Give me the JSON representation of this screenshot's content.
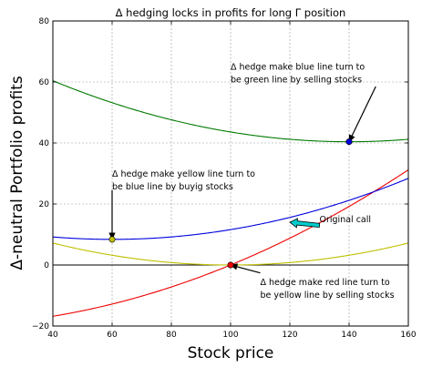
{
  "chart_data": {
    "type": "line",
    "title": "Δ hedging locks in profits for long Γ position",
    "xlabel": "Stock price",
    "ylabel": "Δ-neutral Portfolio profits",
    "xlim": [
      40,
      160
    ],
    "ylim": [
      -20,
      80
    ],
    "xticks": [
      40,
      60,
      80,
      100,
      120,
      140,
      160
    ],
    "yticks": [
      -20,
      0,
      20,
      40,
      60,
      80
    ],
    "grid": true,
    "colors": {
      "red": "#ee0000",
      "yellow": "#bfbf00",
      "blue": "#0000dd",
      "green": "#007a00",
      "cyan": "#00cccc"
    },
    "series": [
      {
        "color_key": "red",
        "equation": "0.002*(x-100)^2 + 0.4*(x-100)",
        "vertex": [
          100,
          0
        ]
      },
      {
        "color_key": "yellow",
        "equation": "0.002*(x-100)^2",
        "vertex": [
          100,
          0
        ]
      },
      {
        "color_key": "blue",
        "equation": "0.002*(x-60)^2 + 8.4",
        "vertex": [
          60,
          8.4
        ]
      },
      {
        "color_key": "green",
        "equation": "0.002*(x-140)^2 + 40.4",
        "vertex": [
          140,
          40.4
        ]
      }
    ],
    "markers": [
      {
        "x": 100,
        "y": 0,
        "color_key": "red"
      },
      {
        "x": 60,
        "y": 8.4,
        "color_key": "yellow"
      },
      {
        "x": 140,
        "y": 40.4,
        "color_key": "blue"
      }
    ],
    "annotations": [
      {
        "lines": [
          "Δ hedge make blue line turn to",
          "be green line by selling stocks"
        ],
        "xy": [
          140,
          40.4
        ],
        "text_xy": [
          100,
          64
        ]
      },
      {
        "lines": [
          "Δ hedge make yellow line turn to",
          "be blue line by buyig stocks"
        ],
        "xy": [
          60,
          8.4
        ],
        "text_xy": [
          60,
          29
        ]
      },
      {
        "lines": [
          "Δ hedge make red line turn to",
          "be yellow line by selling stocks"
        ],
        "xy": [
          100,
          0
        ],
        "text_xy": [
          110,
          -6.5
        ]
      },
      {
        "lines": [
          "Original call"
        ],
        "xy": [
          120,
          14
        ],
        "text_xy": [
          130,
          14
        ],
        "fancy": true
      }
    ]
  }
}
